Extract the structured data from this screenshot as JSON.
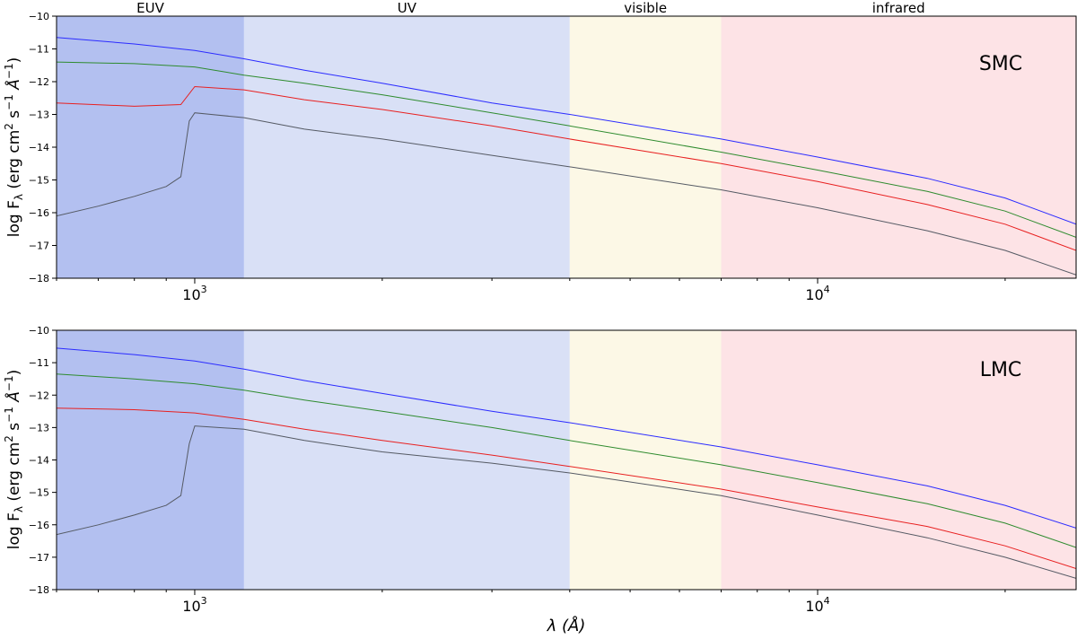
{
  "chart_data": {
    "type": "line",
    "shared": {
      "xscale": "log",
      "xlim": [
        600,
        26000
      ],
      "ylim": [
        -18,
        -10
      ],
      "yticks": [
        -18,
        -17,
        -16,
        -15,
        -14,
        -13,
        -12,
        -11,
        -10
      ],
      "ytick_labels": [
        "−18",
        "−17",
        "−16",
        "−15",
        "−14",
        "−13",
        "−12",
        "−11",
        "−10"
      ],
      "xticks": [
        {
          "value": 1000,
          "base": "10",
          "exp": "3"
        },
        {
          "value": 10000,
          "base": "10",
          "exp": "4"
        }
      ],
      "xlabel": "λ (Å)",
      "ylabel": {
        "prefix": "log F",
        "sub": "λ",
        "mid": " (erg cm",
        "sup1": "2",
        "mid2": " s",
        "sup2": "−1",
        "mid3": " Å",
        "sup3": "−1",
        "end": ")"
      },
      "bands": [
        {
          "label": "EUV",
          "from": 600,
          "to": 1200,
          "color": "#b3c0f0"
        },
        {
          "label": "UV",
          "from": 1200,
          "to": 4000,
          "color": "#d9e0f6"
        },
        {
          "label": "visible",
          "from": 4000,
          "to": 7000,
          "color": "#fcf8e6"
        },
        {
          "label": "infrared",
          "from": 7000,
          "to": 26000,
          "color": "#fde3e6"
        }
      ]
    },
    "panels": [
      {
        "label": "SMC",
        "series": [
          {
            "name": "blue",
            "color": "#2b2bff",
            "x": [
              600,
              800,
              1000,
              1200,
              1500,
              2000,
              3000,
              4000,
              7000,
              10000,
              15000,
              20000,
              26000
            ],
            "y": [
              -10.65,
              -10.85,
              -11.05,
              -11.3,
              -11.65,
              -12.05,
              -12.65,
              -13.0,
              -13.75,
              -14.3,
              -14.95,
              -15.55,
              -16.35
            ]
          },
          {
            "name": "green",
            "color": "#2e8b2e",
            "x": [
              600,
              800,
              1000,
              1200,
              1500,
              2000,
              3000,
              4000,
              7000,
              10000,
              15000,
              20000,
              26000
            ],
            "y": [
              -11.4,
              -11.45,
              -11.55,
              -11.8,
              -12.05,
              -12.4,
              -12.95,
              -13.35,
              -14.15,
              -14.7,
              -15.35,
              -15.95,
              -16.75
            ]
          },
          {
            "name": "red",
            "color": "#e82020",
            "x": [
              600,
              800,
              950,
              1000,
              1200,
              1500,
              2000,
              3000,
              4000,
              7000,
              10000,
              15000,
              20000,
              26000
            ],
            "y": [
              -12.65,
              -12.75,
              -12.7,
              -12.15,
              -12.25,
              -12.55,
              -12.85,
              -13.35,
              -13.75,
              -14.5,
              -15.05,
              -15.75,
              -16.35,
              -17.15
            ]
          },
          {
            "name": "gray",
            "color": "#555a64",
            "x": [
              600,
              700,
              800,
              900,
              950,
              980,
              1000,
              1200,
              1500,
              2000,
              3000,
              4000,
              7000,
              10000,
              15000,
              20000,
              26000
            ],
            "y": [
              -16.1,
              -15.8,
              -15.5,
              -15.2,
              -14.9,
              -13.2,
              -12.95,
              -13.1,
              -13.45,
              -13.75,
              -14.25,
              -14.6,
              -15.3,
              -15.85,
              -16.55,
              -17.15,
              -17.9
            ]
          }
        ]
      },
      {
        "label": "LMC",
        "series": [
          {
            "name": "blue",
            "color": "#2b2bff",
            "x": [
              600,
              800,
              1000,
              1200,
              1500,
              2000,
              3000,
              4000,
              7000,
              10000,
              15000,
              20000,
              26000
            ],
            "y": [
              -10.55,
              -10.75,
              -10.95,
              -11.2,
              -11.55,
              -11.95,
              -12.5,
              -12.85,
              -13.6,
              -14.15,
              -14.8,
              -15.4,
              -16.1
            ]
          },
          {
            "name": "green",
            "color": "#2e8b2e",
            "x": [
              600,
              800,
              1000,
              1200,
              1500,
              2000,
              3000,
              4000,
              7000,
              10000,
              15000,
              20000,
              26000
            ],
            "y": [
              -11.35,
              -11.5,
              -11.65,
              -11.85,
              -12.15,
              -12.5,
              -13.0,
              -13.4,
              -14.15,
              -14.7,
              -15.35,
              -15.95,
              -16.7
            ]
          },
          {
            "name": "red",
            "color": "#e82020",
            "x": [
              600,
              800,
              1000,
              1200,
              1500,
              2000,
              3000,
              4000,
              7000,
              10000,
              15000,
              20000,
              26000
            ],
            "y": [
              -12.4,
              -12.45,
              -12.55,
              -12.75,
              -13.05,
              -13.4,
              -13.85,
              -14.2,
              -14.9,
              -15.45,
              -16.05,
              -16.65,
              -17.35
            ]
          },
          {
            "name": "gray",
            "color": "#555a64",
            "x": [
              600,
              700,
              800,
              900,
              950,
              980,
              1000,
              1200,
              1500,
              2000,
              3000,
              4000,
              7000,
              10000,
              15000,
              20000,
              26000
            ],
            "y": [
              -16.3,
              -16.0,
              -15.7,
              -15.4,
              -15.1,
              -13.5,
              -12.95,
              -13.05,
              -13.4,
              -13.75,
              -14.1,
              -14.4,
              -15.1,
              -15.7,
              -16.4,
              -17.0,
              -17.65
            ]
          }
        ]
      }
    ]
  }
}
